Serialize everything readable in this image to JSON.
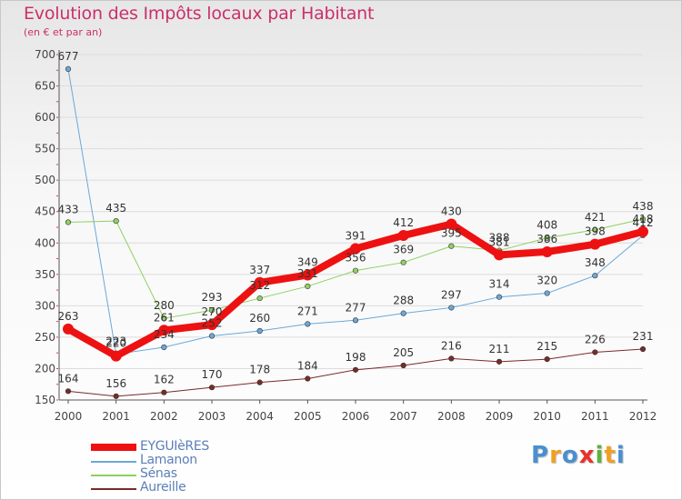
{
  "title": "Evolution des Impôts locaux par Habitant",
  "subtitle": "(en € et par an)",
  "brand": {
    "text": "Proxiti",
    "letters": [
      "P",
      "r",
      "o",
      "x",
      "i",
      "t",
      "i"
    ],
    "colors": [
      "#4a8fd0",
      "#f0a020",
      "#4a8fd0",
      "#e8322a",
      "#60b040",
      "#f0a020",
      "#4a8fd0"
    ]
  },
  "chart_data": {
    "type": "line",
    "x": [
      "2000",
      "2001",
      "2002",
      "2003",
      "2004",
      "2005",
      "2006",
      "2007",
      "2008",
      "2009",
      "2010",
      "2011",
      "2012"
    ],
    "ylim": [
      150,
      700
    ],
    "yticks": [
      150,
      200,
      250,
      300,
      350,
      400,
      450,
      500,
      550,
      600,
      650,
      700
    ],
    "series": [
      {
        "name": "Aureille",
        "color": "#7a2a2a",
        "width": 1,
        "marker": 2.8,
        "values": [
          164,
          156,
          162,
          170,
          178,
          184,
          198,
          205,
          216,
          211,
          215,
          226,
          231
        ],
        "labels": [
          "164",
          "156",
          "162",
          "170",
          "178",
          "184",
          "198",
          "205",
          "216",
          "211",
          "215",
          "226",
          "231"
        ]
      },
      {
        "name": "Lamanon",
        "color": "#6aa8d8",
        "width": 1,
        "marker": 2.8,
        "values": [
          677,
          223,
          234,
          252,
          260,
          271,
          277,
          288,
          297,
          314,
          320,
          348,
          412
        ],
        "labels": [
          "677",
          "223",
          "234",
          "252",
          "260",
          "271",
          "277",
          "288",
          "297",
          "314",
          "320",
          "348",
          "412"
        ]
      },
      {
        "name": "Sénas",
        "color": "#8fd060",
        "width": 1,
        "marker": 2.8,
        "values": [
          433,
          435,
          280,
          293,
          312,
          331,
          356,
          369,
          395,
          388,
          408,
          421,
          438
        ],
        "labels": [
          "433",
          "435",
          "280",
          "293",
          "312",
          "331",
          "356",
          "369",
          "395",
          "388",
          "408",
          "421",
          "438"
        ]
      },
      {
        "name": "EYGUIèRES",
        "color": "#ee1111",
        "width": 8,
        "marker": 6,
        "values": [
          263,
          220,
          261,
          270,
          337,
          349,
          391,
          412,
          430,
          381,
          386,
          398,
          418
        ],
        "labels": [
          "263",
          "220",
          "261",
          "270",
          "337",
          "349",
          "391",
          "412",
          "430",
          "381",
          "386",
          "398",
          "418"
        ]
      }
    ],
    "legend_order": [
      "EYGUIèRES",
      "Lamanon",
      "Sénas",
      "Aureille"
    ]
  }
}
